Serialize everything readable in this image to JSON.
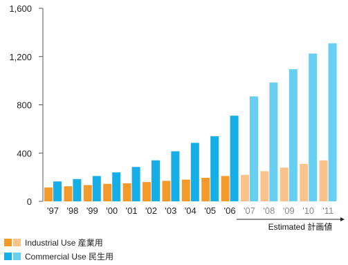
{
  "chart_data": {
    "type": "bar",
    "categories": [
      "'97",
      "'98",
      "'99",
      "'00",
      "'01",
      "'02",
      "'03",
      "'04",
      "'05",
      "'06",
      "'07",
      "'08",
      "'09",
      "'10",
      "'11"
    ],
    "estimated_from_index": 10,
    "series": [
      {
        "name": "Industrial Use 産業用",
        "values": [
          115,
          125,
          135,
          145,
          150,
          160,
          170,
          180,
          195,
          210,
          220,
          250,
          280,
          310,
          340
        ]
      },
      {
        "name": "Commercial Use 民生用",
        "values": [
          165,
          185,
          210,
          240,
          285,
          340,
          415,
          485,
          540,
          710,
          870,
          985,
          1095,
          1225,
          1310
        ]
      }
    ],
    "y_ticks": [
      "0",
      "400",
      "800",
      "1,200",
      "1,600"
    ],
    "y_tick_values": [
      0,
      400,
      800,
      1200,
      1600
    ],
    "ylim": [
      0,
      1600
    ],
    "estimated_label": "Estimated 計画値",
    "legend": [
      {
        "label": "Industrial Use 産業用"
      },
      {
        "label": "Commercial Use 民生用"
      }
    ],
    "colors": {
      "industrial_actual": "#f39a2b",
      "industrial_estimated": "#fbc38c",
      "commercial_actual": "#16aee6",
      "commercial_estimated": "#67d0f2",
      "axis": "#555555",
      "estimated_category_text": "#8a8a8a"
    }
  }
}
